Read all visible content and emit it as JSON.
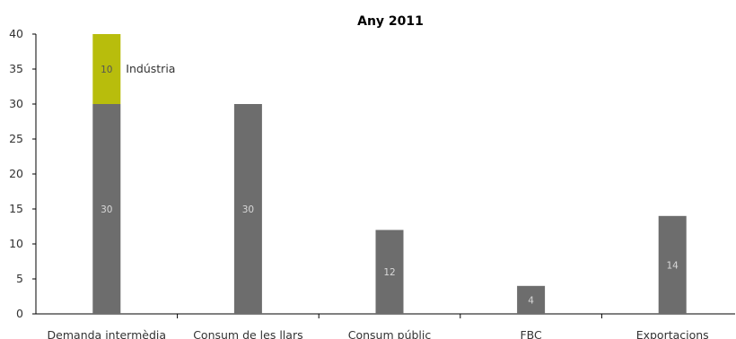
{
  "chart_data": {
    "type": "bar",
    "stacked": true,
    "title": "Any 2011",
    "xlabel": "",
    "ylabel": "",
    "ylim": [
      0,
      40
    ],
    "yticks": [
      0,
      5,
      10,
      15,
      20,
      25,
      30,
      35,
      40
    ],
    "grid": false,
    "categories": [
      "Demanda intermèdia",
      "Consum de les llars",
      "Consum públic",
      "FBC",
      "Exportacions"
    ],
    "series": [
      {
        "values": [
          30,
          30,
          12,
          4,
          14
        ],
        "color": "#6d6d6d",
        "label_color": "#d8d8d8"
      },
      {
        "name": "Indústria",
        "values": [
          10,
          null,
          null,
          null,
          null
        ],
        "color": "#b8bd0c",
        "label_color": "#555555"
      }
    ],
    "annotations": [
      {
        "text": "Indústria",
        "category": "Demanda intermèdia",
        "series": "Indústria"
      }
    ]
  }
}
